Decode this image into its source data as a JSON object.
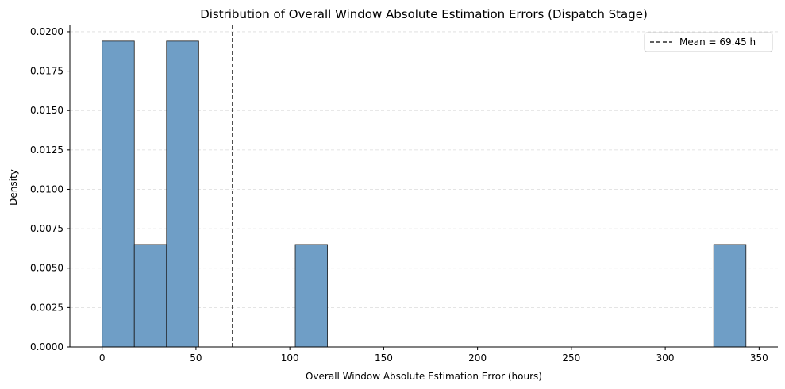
{
  "chart_data": {
    "type": "bar",
    "title": "Distribution of Overall Window Absolute Estimation Errors (Dispatch Stage)",
    "xlabel": "Overall Window Absolute Estimation Error (hours)",
    "ylabel": "Density",
    "xlim": [
      -17.2,
      360.0
    ],
    "ylim": [
      0,
      0.0204
    ],
    "x_ticks": [
      0,
      50,
      100,
      150,
      200,
      250,
      300,
      350
    ],
    "y_ticks": [
      0.0,
      0.0025,
      0.005,
      0.0075,
      0.01,
      0.0125,
      0.015,
      0.0175,
      0.02
    ],
    "y_tick_labels": [
      "0.0000",
      "0.0025",
      "0.0050",
      "0.0075",
      "0.0100",
      "0.0125",
      "0.0150",
      "0.0175",
      "0.0200"
    ],
    "bins": [
      {
        "x0": 0.0,
        "x1": 17.15,
        "value": 0.0194
      },
      {
        "x0": 17.15,
        "x1": 34.3,
        "value": 0.0065
      },
      {
        "x0": 34.3,
        "x1": 51.45,
        "value": 0.0194
      },
      {
        "x0": 102.9,
        "x1": 120.05,
        "value": 0.0065
      },
      {
        "x0": 325.85,
        "x1": 343.0,
        "value": 0.0065
      }
    ],
    "bar_color": "#6f9ec6",
    "mean_value": 69.45,
    "legend": {
      "label": "Mean = 69.45 h",
      "position": "top-right"
    },
    "grid": {
      "y": true,
      "x": false
    }
  }
}
